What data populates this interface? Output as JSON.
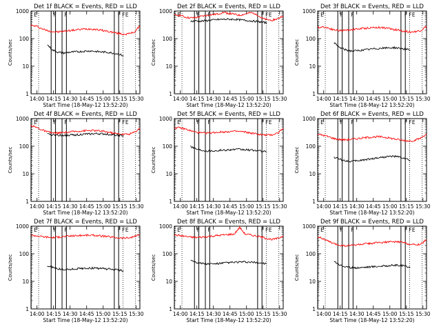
{
  "chart_data": [
    {
      "type": "line",
      "title": "Det 1f BLACK = Events, RED = LLD",
      "ylabel": "Counts/sec",
      "xlabel": "Start Time (18-May-12 13:52:20)",
      "xtick_labels": [
        "14:00",
        "14:15",
        "14:30",
        "14:45",
        "15:00",
        "15:15",
        "15:30"
      ],
      "ytick_labels": [
        "1",
        "10",
        "100",
        "1000"
      ],
      "yscale": "log",
      "ylim": [
        1,
        1000
      ],
      "grid": false,
      "flags": [
        "E",
        "F",
        "F",
        "F",
        "F",
        "E"
      ],
      "series": [
        {
          "color": "#ff0000",
          "x": [
            0,
            0.05,
            0.1,
            0.15,
            0.2,
            0.25,
            0.3,
            0.35,
            0.4,
            0.45,
            0.5,
            0.55,
            0.6,
            0.65,
            0.7,
            0.75,
            0.8,
            0.85,
            0.9,
            0.95,
            1
          ],
          "y": [
            300,
            280,
            230,
            195,
            180,
            175,
            185,
            195,
            205,
            215,
            225,
            225,
            215,
            200,
            185,
            170,
            155,
            145,
            150,
            175,
            280
          ]
        },
        {
          "color": "#000000",
          "x": [
            0.15,
            0.2,
            0.25,
            0.3,
            0.35,
            0.4,
            0.45,
            0.5,
            0.55,
            0.6,
            0.65,
            0.7,
            0.75,
            0.8,
            0.85
          ],
          "y": [
            60,
            38,
            32,
            30,
            32,
            33,
            34,
            35,
            36,
            34,
            33,
            32,
            30,
            28,
            24
          ]
        }
      ]
    },
    {
      "type": "line",
      "title": "Det 2f BLACK = Events, RED = LLD",
      "ylabel": "Counts/sec",
      "xlabel": "Start Time (18-May-12 13:52:20)",
      "xtick_labels": [
        "14:00",
        "14:15",
        "14:30",
        "14:45",
        "15:00",
        "15:15",
        "15:30"
      ],
      "ytick_labels": [
        "1",
        "10",
        "100",
        "1000"
      ],
      "yscale": "log",
      "ylim": [
        1,
        1000
      ],
      "grid": false,
      "flags": [
        "E",
        "F",
        "F",
        "F",
        "F",
        "E"
      ],
      "series": [
        {
          "color": "#ff0000",
          "x": [
            0,
            0.05,
            0.1,
            0.15,
            0.2,
            0.25,
            0.3,
            0.35,
            0.4,
            0.45,
            0.5,
            0.55,
            0.6,
            0.65,
            0.7,
            0.75,
            0.8,
            0.85,
            0.9,
            0.95,
            1
          ],
          "y": [
            700,
            720,
            600,
            560,
            580,
            640,
            700,
            740,
            780,
            900,
            820,
            760,
            700,
            780,
            860,
            800,
            560,
            480,
            470,
            520,
            680
          ]
        },
        {
          "color": "#000000",
          "x": [
            0.15,
            0.2,
            0.25,
            0.3,
            0.35,
            0.4,
            0.45,
            0.5,
            0.55,
            0.6,
            0.65,
            0.7,
            0.75,
            0.8,
            0.85
          ],
          "y": [
            420,
            440,
            430,
            450,
            470,
            490,
            500,
            505,
            500,
            480,
            460,
            440,
            420,
            400,
            370
          ]
        }
      ]
    },
    {
      "type": "line",
      "title": "Det 3f BLACK = Events, RED = LLD",
      "ylabel": "Counts/sec",
      "xlabel": "Start Time (18-May-12 13:52:20)",
      "xtick_labels": [
        "14:00",
        "14:15",
        "14:30",
        "14:45",
        "15:00",
        "15:15",
        "15:30"
      ],
      "ytick_labels": [
        "1",
        "10",
        "100",
        "1000"
      ],
      "yscale": "log",
      "ylim": [
        1,
        1000
      ],
      "grid": false,
      "flags": [
        "E",
        "F",
        "F",
        "F",
        "F",
        "E"
      ],
      "series": [
        {
          "color": "#ff0000",
          "x": [
            0,
            0.05,
            0.1,
            0.15,
            0.2,
            0.25,
            0.3,
            0.35,
            0.4,
            0.45,
            0.5,
            0.55,
            0.6,
            0.65,
            0.7,
            0.75,
            0.8,
            0.85,
            0.9,
            0.95,
            1
          ],
          "y": [
            250,
            270,
            240,
            210,
            195,
            200,
            210,
            220,
            230,
            240,
            250,
            255,
            250,
            235,
            215,
            200,
            185,
            175,
            180,
            200,
            280
          ]
        },
        {
          "color": "#000000",
          "x": [
            0.15,
            0.2,
            0.25,
            0.3,
            0.35,
            0.4,
            0.45,
            0.5,
            0.55,
            0.6,
            0.65,
            0.7,
            0.75,
            0.8,
            0.85
          ],
          "y": [
            70,
            48,
            40,
            36,
            36,
            38,
            40,
            42,
            44,
            45,
            46,
            47,
            45,
            42,
            38
          ]
        }
      ]
    },
    {
      "type": "line",
      "title": "Det 4f BLACK = Events, RED = LLD",
      "ylabel": "Counts/sec",
      "xlabel": "Start Time (18-May-12 13:52:20)",
      "xtick_labels": [
        "14:00",
        "14:15",
        "14:30",
        "14:45",
        "15:00",
        "15:15",
        "15:30"
      ],
      "ytick_labels": [
        "1",
        "10",
        "100",
        "1000"
      ],
      "yscale": "log",
      "ylim": [
        1,
        1000
      ],
      "grid": false,
      "flags": [
        "E",
        "F",
        "F",
        "F",
        "F",
        "E"
      ],
      "series": [
        {
          "color": "#ff0000",
          "x": [
            0,
            0.05,
            0.1,
            0.15,
            0.2,
            0.25,
            0.3,
            0.35,
            0.4,
            0.45,
            0.5,
            0.55,
            0.6,
            0.65,
            0.7,
            0.75,
            0.8,
            0.85,
            0.9,
            0.95,
            1
          ],
          "y": [
            560,
            480,
            390,
            330,
            300,
            300,
            310,
            325,
            340,
            355,
            365,
            370,
            365,
            350,
            330,
            300,
            280,
            270,
            275,
            320,
            450
          ]
        },
        {
          "color": "#000000",
          "x": [
            0.15,
            0.2,
            0.25,
            0.3,
            0.35,
            0.4,
            0.45,
            0.5,
            0.55,
            0.6,
            0.65,
            0.7,
            0.75,
            0.8,
            0.85
          ],
          "y": [
            270,
            260,
            250,
            248,
            252,
            258,
            265,
            272,
            278,
            282,
            280,
            272,
            262,
            250,
            235
          ]
        }
      ]
    },
    {
      "type": "line",
      "title": "Det 5f BLACK = Events, RED = LLD",
      "ylabel": "Counts/sec",
      "xlabel": "Start Time (18-May-12 13:52:20)",
      "xtick_labels": [
        "14:00",
        "14:15",
        "14:30",
        "14:45",
        "15:00",
        "15:15",
        "15:30"
      ],
      "ytick_labels": [
        "1",
        "10",
        "100",
        "1000"
      ],
      "yscale": "log",
      "ylim": [
        1,
        1000
      ],
      "grid": false,
      "flags": [
        "E",
        "F",
        "F",
        "F",
        "F",
        "E"
      ],
      "series": [
        {
          "color": "#ff0000",
          "x": [
            0,
            0.05,
            0.1,
            0.15,
            0.2,
            0.25,
            0.3,
            0.35,
            0.4,
            0.45,
            0.5,
            0.55,
            0.6,
            0.65,
            0.7,
            0.75,
            0.8,
            0.85,
            0.9,
            0.95,
            1
          ],
          "y": [
            470,
            460,
            420,
            360,
            320,
            300,
            300,
            310,
            320,
            330,
            340,
            345,
            340,
            325,
            300,
            280,
            260,
            250,
            260,
            300,
            450
          ]
        },
        {
          "color": "#000000",
          "x": [
            0.15,
            0.2,
            0.25,
            0.3,
            0.35,
            0.4,
            0.45,
            0.5,
            0.55,
            0.6,
            0.65,
            0.7,
            0.75,
            0.8,
            0.85
          ],
          "y": [
            100,
            80,
            72,
            68,
            68,
            70,
            72,
            74,
            76,
            76,
            74,
            72,
            70,
            66,
            62
          ]
        }
      ]
    },
    {
      "type": "line",
      "title": "Det 6f BLACK = Events, RED = LLD",
      "ylabel": "Counts/sec",
      "xlabel": "Start Time (18-May-12 13:52:20)",
      "xtick_labels": [
        "14:00",
        "14:15",
        "14:30",
        "14:45",
        "15:00",
        "15:15",
        "15:30"
      ],
      "ytick_labels": [
        "1",
        "10",
        "100",
        "1000"
      ],
      "yscale": "log",
      "ylim": [
        1,
        1000
      ],
      "grid": false,
      "flags": [
        "E",
        "F",
        "F",
        "F",
        "F",
        "E"
      ],
      "series": [
        {
          "color": "#ff0000",
          "x": [
            0,
            0.05,
            0.1,
            0.15,
            0.2,
            0.25,
            0.3,
            0.35,
            0.4,
            0.45,
            0.5,
            0.55,
            0.6,
            0.65,
            0.7,
            0.75,
            0.8,
            0.85,
            0.9,
            0.95,
            1
          ],
          "y": [
            270,
            250,
            220,
            190,
            175,
            170,
            175,
            185,
            195,
            205,
            215,
            220,
            215,
            200,
            185,
            170,
            160,
            155,
            165,
            200,
            280
          ]
        },
        {
          "color": "#000000",
          "x": [
            0.15,
            0.2,
            0.25,
            0.3,
            0.35,
            0.4,
            0.45,
            0.5,
            0.55,
            0.6,
            0.65,
            0.7,
            0.75,
            0.8,
            0.85
          ],
          "y": [
            40,
            34,
            30,
            28,
            29,
            31,
            33,
            35,
            38,
            40,
            42,
            43,
            40,
            36,
            30
          ]
        }
      ]
    },
    {
      "type": "line",
      "title": "Det 7f BLACK = Events, RED = LLD",
      "ylabel": "Counts/sec",
      "xlabel": "Start Time (18-May-12 13:52:20)",
      "xtick_labels": [
        "14:00",
        "14:15",
        "14:30",
        "14:45",
        "15:00",
        "15:15",
        "15:30"
      ],
      "ytick_labels": [
        "1",
        "10",
        "100",
        "1000"
      ],
      "yscale": "log",
      "ylim": [
        1,
        1000
      ],
      "grid": false,
      "flags": [
        "E",
        "F",
        "F",
        "F",
        "F",
        "E"
      ],
      "series": [
        {
          "color": "#ff0000",
          "x": [
            0,
            0.05,
            0.1,
            0.15,
            0.2,
            0.25,
            0.3,
            0.35,
            0.4,
            0.45,
            0.5,
            0.55,
            0.6,
            0.65,
            0.7,
            0.75,
            0.8,
            0.85,
            0.9,
            0.95,
            1
          ],
          "y": [
            470,
            450,
            420,
            400,
            390,
            400,
            420,
            440,
            450,
            460,
            470,
            470,
            460,
            440,
            420,
            400,
            380,
            370,
            380,
            420,
            500
          ]
        },
        {
          "color": "#000000",
          "x": [
            0.15,
            0.2,
            0.25,
            0.3,
            0.35,
            0.4,
            0.45,
            0.5,
            0.55,
            0.6,
            0.65,
            0.7,
            0.75,
            0.8,
            0.85
          ],
          "y": [
            36,
            32,
            28,
            27,
            27,
            28,
            29,
            30,
            30,
            30,
            29,
            28,
            27,
            26,
            24
          ]
        }
      ]
    },
    {
      "type": "line",
      "title": "Det 8f BLACK = Events, RED = LLD",
      "ylabel": "Counts/sec",
      "xlabel": "Start Time (18-May-12 13:52:20)",
      "xtick_labels": [
        "14:00",
        "14:15",
        "14:30",
        "14:45",
        "15:00",
        "15:15",
        "15:30"
      ],
      "ytick_labels": [
        "1",
        "10",
        "100",
        "1000"
      ],
      "yscale": "log",
      "ylim": [
        1,
        1000
      ],
      "grid": false,
      "flags": [
        "E",
        "F",
        "F",
        "F",
        "F",
        "E"
      ],
      "series": [
        {
          "color": "#ff0000",
          "x": [
            0,
            0.05,
            0.1,
            0.15,
            0.2,
            0.25,
            0.3,
            0.35,
            0.4,
            0.45,
            0.5,
            0.55,
            0.6,
            0.65,
            0.7,
            0.75,
            0.8,
            0.85,
            0.9,
            0.95,
            1
          ],
          "y": [
            480,
            460,
            430,
            400,
            390,
            400,
            420,
            440,
            460,
            480,
            500,
            520,
            900,
            520,
            480,
            440,
            400,
            360,
            330,
            360,
            440
          ]
        },
        {
          "color": "#000000",
          "x": [
            0.15,
            0.2,
            0.25,
            0.3,
            0.35,
            0.4,
            0.45,
            0.5,
            0.55,
            0.6,
            0.65,
            0.7,
            0.75,
            0.8,
            0.85
          ],
          "y": [
            60,
            50,
            45,
            43,
            43,
            44,
            46,
            48,
            49,
            50,
            50,
            49,
            48,
            46,
            44
          ]
        }
      ]
    },
    {
      "type": "line",
      "title": "Det 9f BLACK = Events, RED = LLD",
      "ylabel": "Counts/sec",
      "xlabel": "Start Time (18-May-12 13:52:20)",
      "xtick_labels": [
        "14:00",
        "14:15",
        "14:30",
        "14:45",
        "15:00",
        "15:15",
        "15:30"
      ],
      "ytick_labels": [
        "1",
        "10",
        "100",
        "1000"
      ],
      "yscale": "log",
      "ylim": [
        1,
        1000
      ],
      "grid": false,
      "flags": [
        "E",
        "F",
        "F",
        "F",
        "F",
        "E"
      ],
      "series": [
        {
          "color": "#ff0000",
          "x": [
            0,
            0.05,
            0.1,
            0.15,
            0.2,
            0.25,
            0.3,
            0.35,
            0.4,
            0.45,
            0.5,
            0.55,
            0.6,
            0.65,
            0.7,
            0.75,
            0.8,
            0.85,
            0.9,
            0.95,
            1
          ],
          "y": [
            420,
            350,
            280,
            230,
            205,
            195,
            200,
            210,
            220,
            230,
            240,
            250,
            260,
            265,
            270,
            270,
            250,
            220,
            210,
            230,
            320
          ]
        },
        {
          "color": "#000000",
          "x": [
            0.15,
            0.2,
            0.25,
            0.3,
            0.35,
            0.4,
            0.45,
            0.5,
            0.55,
            0.6,
            0.65,
            0.7,
            0.75,
            0.8,
            0.85
          ],
          "y": [
            55,
            40,
            34,
            31,
            31,
            32,
            33,
            34,
            35,
            36,
            37,
            38,
            38,
            36,
            33
          ]
        }
      ]
    }
  ]
}
